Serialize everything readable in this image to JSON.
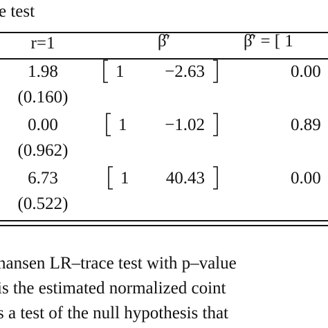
{
  "caption": "e test",
  "table": {
    "header": [
      "r=1",
      "β̂′",
      "β̂′ = [ 1"
    ],
    "rows": [
      {
        "stat": "1.98",
        "pvalue": "(0.160)",
        "beta": [
          "1",
          "−2.63"
        ],
        "test": "0.00"
      },
      {
        "stat": "0.00",
        "pvalue": "(0.962)",
        "beta": [
          "1",
          "−1.02"
        ],
        "test": "0.89"
      },
      {
        "stat": "6.73",
        "pvalue": "(0.522)",
        "beta": [
          "1",
          "40.43"
        ],
        "test": "0.00"
      }
    ]
  },
  "notes": [
    "nansen LR–trace test with p–value",
    "is the estimated normalized coint",
    "s a test of the null hypothesis that"
  ]
}
